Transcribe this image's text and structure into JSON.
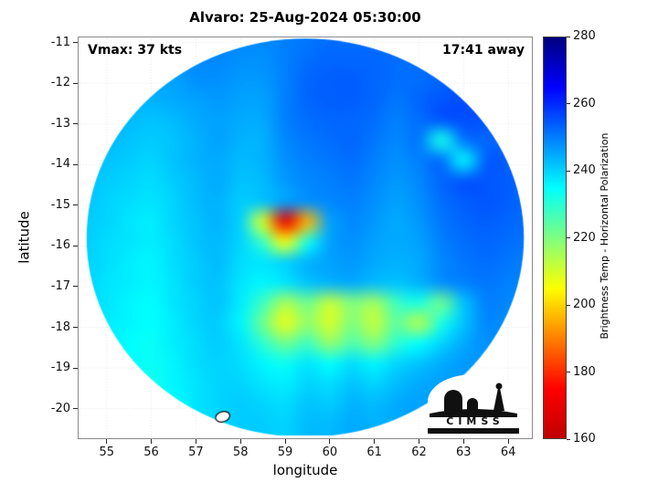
{
  "title": "Alvaro: 25-Aug-2024 05:30:00",
  "annotations": {
    "vmax": "Vmax: 37 kts",
    "time_away": "17:41 away"
  },
  "logo": {
    "text": "CIMSS"
  },
  "chart_data": {
    "type": "heatmap",
    "title": "Alvaro: 25-Aug-2024 05:30:00",
    "xlabel": "longitude",
    "ylabel": "latitude",
    "xlim": [
      54.35,
      64.55
    ],
    "ylim": [
      -20.75,
      -10.85
    ],
    "x_ticks": [
      55,
      56,
      57,
      58,
      59,
      60,
      61,
      62,
      63,
      64
    ],
    "y_ticks": [
      -11,
      -12,
      -13,
      -14,
      -15,
      -16,
      -17,
      -18,
      -19,
      -20
    ],
    "grid": true,
    "colorbar": {
      "label": "Brightness Temp - Horizontal Polarization",
      "min": 160,
      "max": 280,
      "ticks": [
        160,
        180,
        200,
        220,
        240,
        260,
        280
      ],
      "colormap": "jet_reversed"
    },
    "disk": {
      "center_lon": 59.45,
      "center_lat": -15.8,
      "radius_deg": 4.9
    },
    "contour": {
      "lon": 57.6,
      "lat": -20.2
    },
    "x": [
      54.5,
      55.0,
      55.5,
      56.0,
      56.5,
      57.0,
      57.5,
      58.0,
      58.5,
      59.0,
      59.5,
      60.0,
      60.5,
      61.0,
      61.5,
      62.0,
      62.5,
      63.0,
      63.5,
      64.0,
      64.5
    ],
    "y": [
      -10.9,
      -11.4,
      -11.9,
      -12.4,
      -12.9,
      -13.4,
      -13.9,
      -14.4,
      -14.9,
      -15.4,
      -15.9,
      -16.4,
      -16.9,
      -17.4,
      -17.9,
      -18.4,
      -18.9,
      -19.4,
      -19.9,
      -20.4
    ],
    "values": [
      [
        250,
        250,
        250,
        250,
        250,
        250,
        250,
        249,
        249,
        250,
        251,
        252,
        252,
        252,
        252,
        252,
        252,
        252,
        252,
        252,
        252
      ],
      [
        249,
        249,
        248,
        248,
        248,
        249,
        249,
        248,
        248,
        250,
        252,
        253,
        253,
        253,
        252,
        252,
        253,
        253,
        253,
        253,
        253
      ],
      [
        248,
        247,
        246,
        246,
        246,
        248,
        248,
        247,
        247,
        250,
        253,
        254,
        254,
        253,
        252,
        252,
        253,
        254,
        254,
        254,
        254
      ],
      [
        246,
        245,
        244,
        244,
        245,
        246,
        247,
        246,
        246,
        250,
        253,
        254,
        254,
        253,
        251,
        253,
        255,
        256,
        256,
        255,
        254
      ],
      [
        245,
        244,
        243,
        242,
        243,
        245,
        246,
        245,
        245,
        250,
        252,
        253,
        253,
        252,
        250,
        252,
        255,
        256,
        255,
        254,
        253
      ],
      [
        244,
        243,
        242,
        241,
        242,
        244,
        246,
        244,
        244,
        249,
        251,
        252,
        253,
        251,
        249,
        251,
        233,
        251,
        253,
        253,
        253
      ],
      [
        243,
        242,
        241,
        240,
        242,
        244,
        245,
        243,
        244,
        248,
        250,
        251,
        252,
        250,
        248,
        250,
        252,
        236,
        254,
        254,
        253
      ],
      [
        242,
        241,
        240,
        239,
        241,
        243,
        245,
        242,
        243,
        247,
        249,
        250,
        251,
        249,
        247,
        249,
        253,
        255,
        255,
        254,
        253
      ],
      [
        242,
        240,
        239,
        238,
        240,
        243,
        244,
        241,
        242,
        246,
        248,
        249,
        250,
        248,
        246,
        248,
        252,
        254,
        255,
        254,
        252
      ],
      [
        241,
        240,
        238,
        237,
        240,
        242,
        244,
        240,
        210,
        170,
        196,
        246,
        249,
        247,
        245,
        247,
        251,
        253,
        254,
        253,
        252
      ],
      [
        241,
        239,
        238,
        237,
        239,
        242,
        243,
        240,
        228,
        206,
        232,
        246,
        248,
        246,
        245,
        246,
        250,
        252,
        253,
        252,
        251
      ],
      [
        240,
        239,
        237,
        236,
        239,
        241,
        243,
        239,
        238,
        240,
        244,
        246,
        247,
        245,
        244,
        245,
        249,
        251,
        252,
        251,
        250
      ],
      [
        240,
        238,
        237,
        236,
        238,
        241,
        242,
        238,
        236,
        238,
        242,
        244,
        245,
        243,
        242,
        244,
        248,
        250,
        251,
        250,
        249
      ],
      [
        239,
        238,
        236,
        235,
        238,
        240,
        242,
        237,
        228,
        215,
        222,
        212,
        220,
        216,
        228,
        232,
        222,
        242,
        250,
        249,
        248
      ],
      [
        239,
        237,
        236,
        235,
        237,
        240,
        241,
        236,
        222,
        208,
        218,
        210,
        220,
        212,
        224,
        214,
        232,
        242,
        249,
        248,
        247
      ],
      [
        238,
        237,
        235,
        234,
        237,
        239,
        241,
        238,
        230,
        222,
        228,
        218,
        226,
        220,
        230,
        235,
        240,
        245,
        248,
        247,
        246
      ],
      [
        238,
        236,
        235,
        234,
        236,
        239,
        240,
        239,
        236,
        234,
        238,
        235,
        239,
        236,
        240,
        242,
        245,
        247,
        247,
        246,
        246
      ],
      [
        237,
        236,
        234,
        233,
        236,
        238,
        240,
        240,
        238,
        237,
        240,
        239,
        242,
        240,
        243,
        245,
        246,
        246,
        246,
        245,
        245
      ],
      [
        237,
        235,
        234,
        233,
        235,
        238,
        240,
        241,
        240,
        239,
        242,
        241,
        244,
        243,
        245,
        246,
        246,
        246,
        245,
        245,
        245
      ],
      [
        236,
        235,
        233,
        232,
        235,
        238,
        239,
        241,
        241,
        240,
        243,
        243,
        245,
        244,
        245,
        246,
        245,
        245,
        245,
        244,
        244
      ]
    ]
  }
}
